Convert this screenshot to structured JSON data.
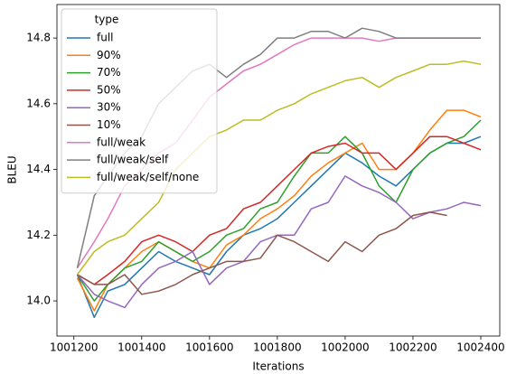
{
  "chart_data": {
    "type": "line",
    "xlabel": "Iterations",
    "ylabel": "BLEU",
    "legend_title": "type",
    "legend": "upper left",
    "x": [
      1001210,
      1001260,
      1001300,
      1001350,
      1001400,
      1001450,
      1001500,
      1001550,
      1001600,
      1001650,
      1001700,
      1001750,
      1001800,
      1001850,
      1001900,
      1001950,
      1002000,
      1002050,
      1002100,
      1002150,
      1002200,
      1002250,
      1002300,
      1002350,
      1002400
    ],
    "series": [
      {
        "name": "full",
        "color": "#1f77b4",
        "values": [
          14.08,
          13.95,
          14.03,
          14.05,
          14.1,
          14.15,
          14.12,
          14.1,
          14.08,
          14.15,
          14.2,
          14.22,
          14.25,
          14.3,
          14.35,
          14.4,
          14.45,
          14.42,
          14.38,
          14.35,
          14.4,
          14.45,
          14.48,
          14.48,
          14.5
        ]
      },
      {
        "name": "90%",
        "color": "#ff7f0e",
        "values": [
          14.07,
          13.97,
          14.05,
          14.1,
          14.15,
          14.18,
          14.15,
          14.12,
          14.1,
          14.17,
          14.2,
          14.25,
          14.28,
          14.32,
          14.38,
          14.42,
          14.45,
          14.48,
          14.4,
          14.4,
          14.45,
          14.52,
          14.58,
          14.58,
          14.56
        ]
      },
      {
        "name": "70%",
        "color": "#2ca02c",
        "values": [
          14.08,
          14.0,
          14.05,
          14.1,
          14.12,
          14.18,
          14.15,
          14.12,
          14.15,
          14.2,
          14.22,
          14.28,
          14.3,
          14.38,
          14.45,
          14.45,
          14.5,
          14.45,
          14.35,
          14.3,
          14.4,
          14.45,
          14.48,
          14.5,
          14.55
        ]
      },
      {
        "name": "50%",
        "color": "#d62728",
        "values": [
          14.08,
          14.05,
          14.08,
          14.12,
          14.18,
          14.2,
          14.18,
          14.15,
          14.2,
          14.22,
          14.28,
          14.3,
          14.35,
          14.4,
          14.45,
          14.47,
          14.48,
          14.45,
          14.45,
          14.4,
          14.45,
          14.5,
          14.5,
          14.48,
          14.46
        ]
      },
      {
        "name": "30%",
        "color": "#9467bd",
        "values": [
          14.08,
          14.02,
          14.0,
          13.98,
          14.05,
          14.1,
          14.12,
          14.15,
          14.05,
          14.1,
          14.12,
          14.18,
          14.2,
          14.2,
          14.28,
          14.3,
          14.38,
          14.35,
          14.33,
          14.3,
          14.25,
          14.27,
          14.28,
          14.3,
          14.29
        ]
      },
      {
        "name": "10%",
        "color": "#8c564b",
        "values": [
          14.08,
          14.05,
          14.05,
          14.08,
          14.02,
          14.03,
          14.05,
          14.08,
          14.1,
          14.12,
          14.12,
          14.13,
          14.2,
          14.18,
          14.15,
          14.12,
          14.18,
          14.15,
          14.2,
          14.22,
          14.26,
          14.27,
          14.26,
          null,
          null
        ]
      },
      {
        "name": "full/weak",
        "color": "#e377c2",
        "values": [
          14.1,
          14.18,
          14.25,
          14.35,
          14.4,
          14.45,
          14.48,
          14.55,
          14.62,
          14.66,
          14.7,
          14.72,
          14.75,
          14.78,
          14.8,
          14.8,
          14.8,
          14.8,
          14.79,
          14.8,
          14.8,
          14.8,
          14.8,
          14.8,
          14.8
        ]
      },
      {
        "name": "full/weak/self",
        "color": "#7f7f7f",
        "values": [
          14.1,
          14.32,
          14.38,
          14.45,
          14.5,
          14.6,
          14.65,
          14.7,
          14.72,
          14.68,
          14.72,
          14.75,
          14.8,
          14.8,
          14.82,
          14.82,
          14.8,
          14.83,
          14.82,
          14.8,
          14.8,
          14.8,
          14.8,
          14.8,
          14.8
        ]
      },
      {
        "name": "full/weak/self/none",
        "color": "#bcbd22",
        "values": [
          14.08,
          14.15,
          14.18,
          14.2,
          14.25,
          14.3,
          14.4,
          14.45,
          14.5,
          14.52,
          14.55,
          14.55,
          14.58,
          14.6,
          14.63,
          14.65,
          14.67,
          14.68,
          14.65,
          14.68,
          14.7,
          14.72,
          14.72,
          14.73,
          14.72
        ]
      }
    ],
    "xlim": [
      1001150,
      1002456
    ],
    "xticks": [
      1001200,
      1001400,
      1001600,
      1001800,
      1002000,
      1002200,
      1002400
    ],
    "ylim": [
      13.893,
      14.902
    ],
    "yticks": [
      {
        "value": 14,
        "label": "14.0"
      },
      14.2,
      14.4,
      14.6,
      14.8
    ],
    "grid": false
  }
}
